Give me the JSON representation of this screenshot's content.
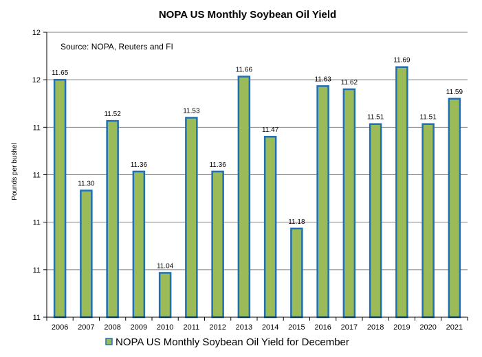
{
  "chart_data": {
    "type": "bar",
    "title": "NOPA US Monthly Soybean Oil Yield",
    "annotation": "Source: NOPA, Reuters and FI",
    "xlabel": "",
    "ylabel": "Pounds per bushel",
    "categories": [
      "2006",
      "2007",
      "2008",
      "2009",
      "2010",
      "2011",
      "2012",
      "2013",
      "2014",
      "2015",
      "2016",
      "2017",
      "2018",
      "2019",
      "2020",
      "2021"
    ],
    "series": [
      {
        "name": "NOPA US Monthly Soybean Oil Yield for December",
        "values": [
          11.65,
          11.3,
          11.52,
          11.36,
          11.04,
          11.53,
          11.36,
          11.66,
          11.47,
          11.18,
          11.63,
          11.62,
          11.51,
          11.69,
          11.51,
          11.59
        ],
        "data_labels": [
          "11.65",
          "11.30",
          "11.52",
          "11.36",
          "11.04",
          "11.53",
          "11.36",
          "11.66",
          "11.47",
          "11.18",
          "11.63",
          "11.62",
          "11.51",
          "11.69",
          "11.51",
          "11.59"
        ]
      }
    ],
    "ylim": [
      10.9,
      11.8
    ],
    "y_ticks": [
      10.9,
      11.05,
      11.2,
      11.35,
      11.5,
      11.65,
      11.8
    ],
    "y_tick_labels": [
      "11",
      "11",
      "11",
      "11",
      "11",
      "12",
      "12"
    ],
    "grid": true,
    "legend_position": "bottom",
    "colors": {
      "bar_fill": "#9BBB59",
      "bar_border": "#1F6FB5",
      "grid": "#7f7f7f",
      "axis": "#000000"
    }
  }
}
